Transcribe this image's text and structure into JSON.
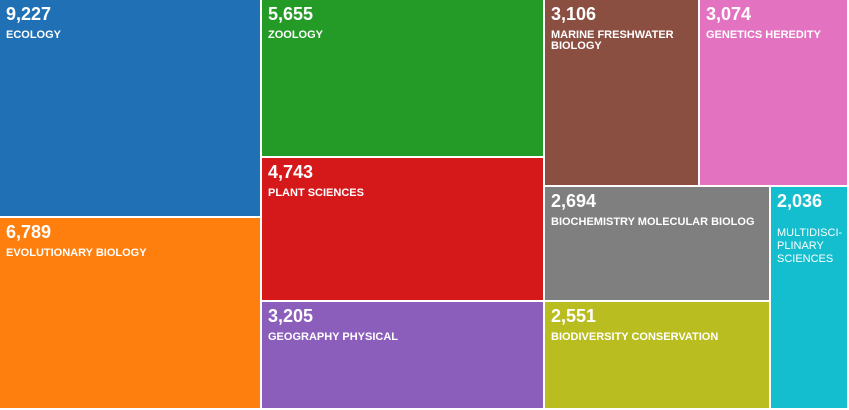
{
  "chart_data": {
    "type": "treemap",
    "title": "",
    "items": [
      {
        "label": "ECOLOGY",
        "value": 9227,
        "value_text": "9,227",
        "color": "#1f70b4"
      },
      {
        "label": "EVOLUTIONARY BIOLOGY",
        "value": 6789,
        "value_text": "6,789",
        "color": "#ff7f0e"
      },
      {
        "label": "ZOOLOGY",
        "value": 5655,
        "value_text": "5,655",
        "color": "#249b27"
      },
      {
        "label": "PLANT SCIENCES",
        "value": 4743,
        "value_text": "4,743",
        "color": "#d5191b"
      },
      {
        "label": "GEOGRAPHY PHYSICAL",
        "value": 3205,
        "value_text": "3,205",
        "color": "#8c5ebc"
      },
      {
        "label": "MARINE FRESHWATER BIOLOGY",
        "value": 3106,
        "value_text": "3,106",
        "color": "#8b4f42"
      },
      {
        "label": "GENETICS HEREDITY",
        "value": 3074,
        "value_text": "3,074",
        "color": "#e373c1"
      },
      {
        "label": "BIOCHEMISTRY MOLECULAR BIOLOG",
        "value": 2694,
        "value_text": "2,694",
        "color": "#7f7f7f"
      },
      {
        "label": "BIODIVERSITY CONSERVATION",
        "value": 2551,
        "value_text": "2,551",
        "color": "#b9bd1f"
      },
      {
        "label": "MULTIDISCI-PLINARY SCIENCES",
        "value": 2036,
        "value_text": "2,036",
        "color": "#15becf"
      }
    ]
  }
}
